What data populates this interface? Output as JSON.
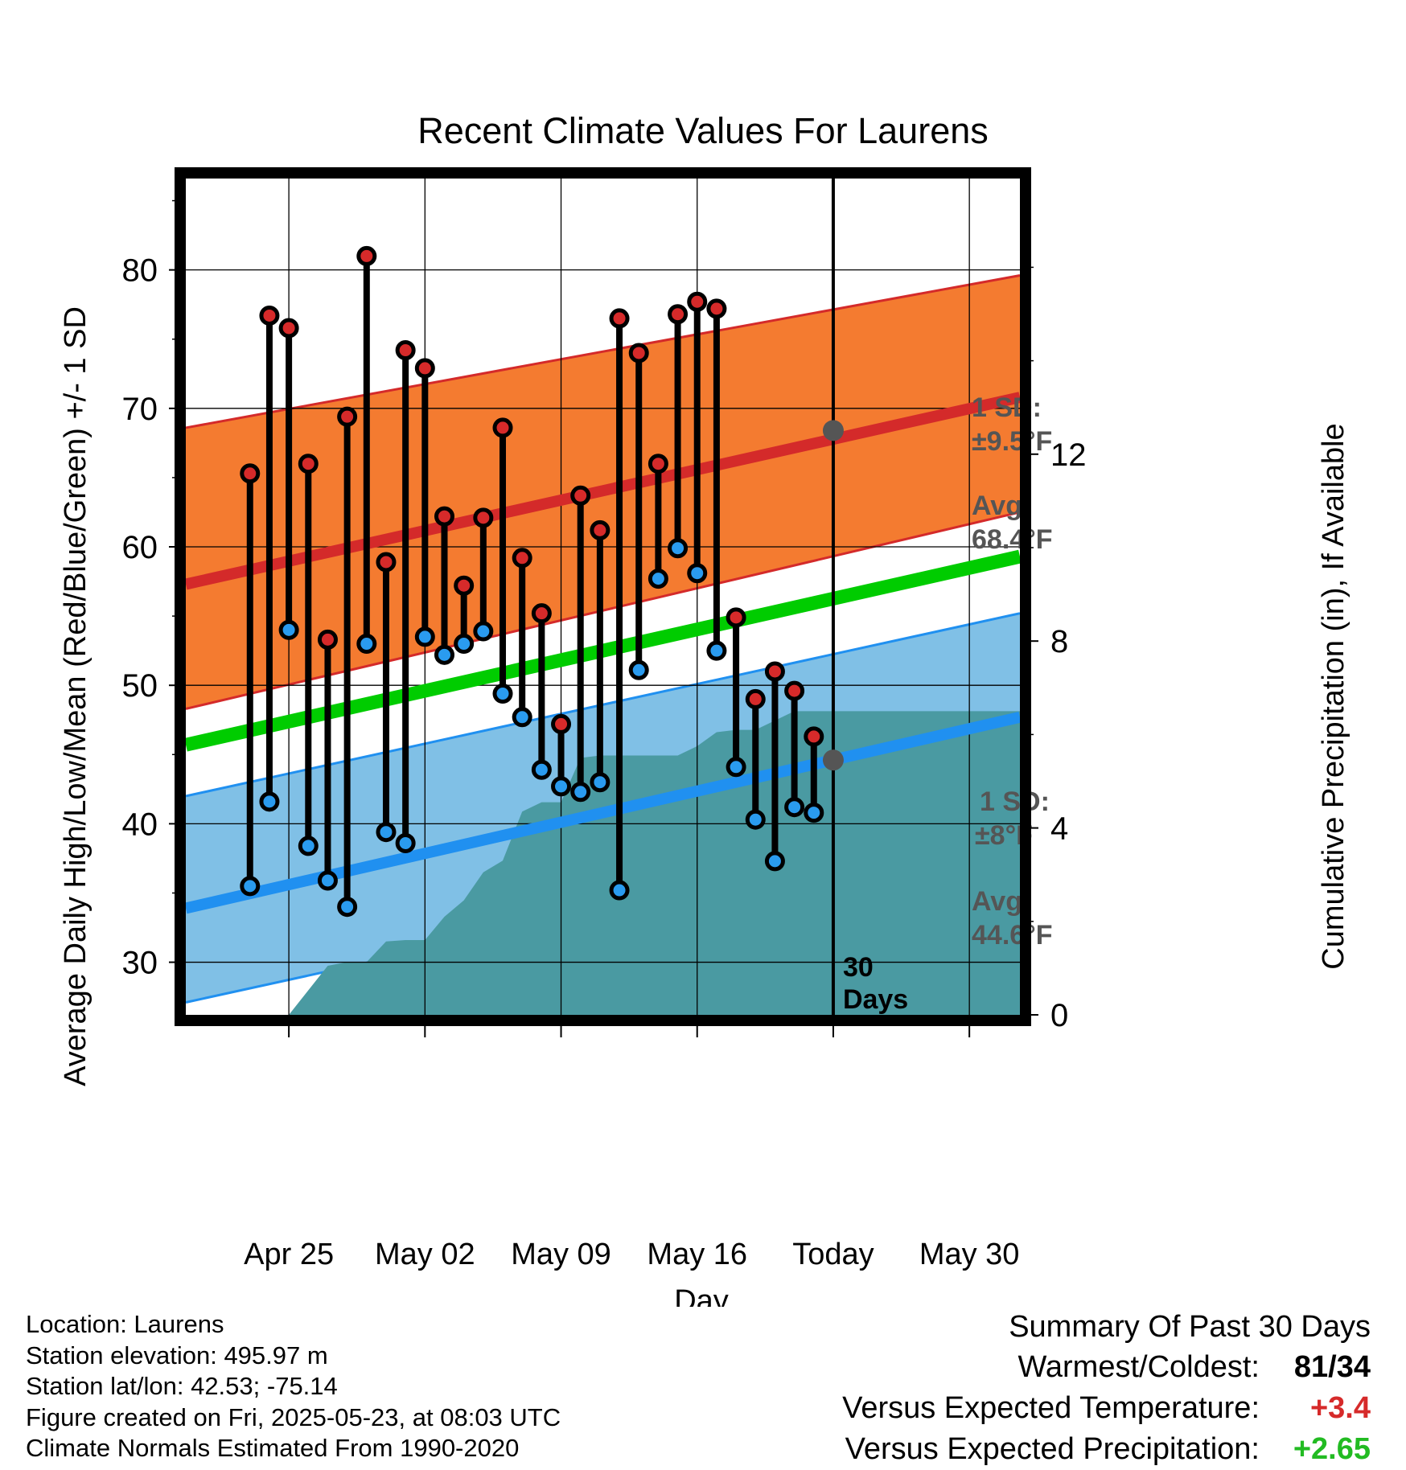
{
  "chart_data": {
    "type": "line",
    "title": "Recent Climate Values For Laurens",
    "xlabel": "Day",
    "ylabel": "Average Daily High/Low/Mean (Red/Blue/Green) +/- 1 SD",
    "y2label": "Cumulative Precipitation (in), If Available",
    "ylim": [
      26.2,
      86.6
    ],
    "y2lim": [
      0,
      17.9
    ],
    "xlim_days": [
      -33.3,
      9.6
    ],
    "x_tick_labels": [
      "Apr 25",
      "May 02",
      "May 09",
      "May 16",
      "Today",
      "May 30"
    ],
    "x_tick_days": [
      -28,
      -21,
      -14,
      -7,
      0,
      7
    ],
    "y_ticks": [
      30,
      40,
      50,
      60,
      70,
      80
    ],
    "y2_ticks": [
      0,
      4,
      8,
      12
    ],
    "today_label": "30\nDays",
    "daily": {
      "x_days": [
        -30,
        -29,
        -28,
        -27,
        -26,
        -25,
        -24,
        -23,
        -22,
        -21,
        -20,
        -19,
        -18,
        -17,
        -16,
        -15,
        -14,
        -13,
        -12,
        -11,
        -10,
        -9,
        -8,
        -7,
        -6,
        -5,
        -4,
        -3,
        -2,
        -1
      ],
      "high": [
        65.3,
        76.7,
        75.8,
        66.0,
        53.3,
        69.4,
        81.0,
        58.9,
        74.2,
        72.9,
        62.2,
        57.2,
        62.1,
        68.6,
        59.2,
        55.2,
        47.2,
        63.7,
        61.2,
        76.5,
        74.0,
        66.0,
        76.8,
        77.7,
        77.2,
        54.9,
        49.0,
        51.0,
        49.6,
        46.3
      ],
      "low": [
        35.5,
        41.6,
        54.0,
        38.4,
        35.9,
        34.0,
        53.0,
        39.4,
        38.6,
        53.5,
        52.2,
        53.0,
        53.9,
        49.4,
        47.7,
        43.9,
        42.7,
        42.3,
        43.0,
        35.2,
        51.1,
        57.7,
        59.9,
        58.1,
        52.5,
        44.1,
        40.3,
        37.3,
        41.2,
        40.8
      ]
    },
    "normals": {
      "x_days": [
        -33.3,
        9.6
      ],
      "avg_high": [
        57.3,
        70.8
      ],
      "avg_low": [
        33.9,
        47.7
      ],
      "avg_mean": [
        45.7,
        59.3
      ],
      "high_sd_band_upper": [
        68.6,
        79.6
      ],
      "high_sd_band_lower": [
        48.3,
        62.5
      ],
      "low_sd_band_upper": [
        42.0,
        55.2
      ],
      "low_sd_band_lower": [
        27.1,
        40.3
      ]
    },
    "precipitation_cumulative": {
      "x_days": [
        -28,
        -26,
        -25,
        -24,
        -23,
        -22,
        -21,
        -20,
        -19,
        -18,
        -17,
        -16,
        -15,
        -14,
        -13,
        -12,
        -11,
        -10,
        -9,
        -8,
        -7,
        -6,
        -5,
        -4,
        -3,
        -2,
        -1,
        0,
        9.6
      ],
      "values": [
        0,
        1.05,
        1.13,
        1.13,
        1.57,
        1.6,
        1.6,
        2.1,
        2.45,
        3.05,
        3.3,
        4.35,
        4.55,
        4.55,
        5.5,
        5.55,
        5.55,
        5.55,
        5.55,
        5.55,
        5.75,
        6.05,
        6.1,
        6.1,
        6.3,
        6.5,
        6.5,
        6.5,
        6.5
      ]
    },
    "annotations": {
      "high_sd": "1 SD:",
      "high_sd_value": "±9.5°F",
      "high_avg": "Avg:",
      "high_avg_value": "68.4°F",
      "low_sd": "1 SD:",
      "low_sd_value": "±8°F",
      "low_avg": "Avg:",
      "low_avg_value": "44.6°F"
    },
    "today_marks": {
      "avg_high": 68.4,
      "avg_low": 44.6
    },
    "colors": {
      "high_band": "#f47b30",
      "high_line": "#d42a2a",
      "low_band": "#80c0e6",
      "low_line": "#2090f0",
      "mean_line": "#00cc00",
      "precip": "#4a9aa2",
      "high_dot": "#d62a2a",
      "low_dot": "#2a9bef",
      "annotation": "#555555"
    }
  },
  "info": {
    "location": "Location: Laurens",
    "elevation": "Station elevation: 495.97 m",
    "latlon": "Station lat/lon: 42.53; -75.14",
    "created": "Figure created on Fri, 2025-05-23, at 08:03 UTC",
    "normals": "Climate Normals Estimated From 1990-2020"
  },
  "summary": {
    "title": "Summary Of Past 30 Days",
    "warm_cold_label": "Warmest/Coldest:",
    "warm_value": "81",
    "cold_value": "34",
    "temp_label": "Versus Expected Temperature:",
    "temp_value": "+3.4",
    "temp_color": "#d62a2a",
    "precip_label": "Versus Expected Precipitation:",
    "precip_value": "+2.65",
    "precip_color": "#22bb22"
  }
}
